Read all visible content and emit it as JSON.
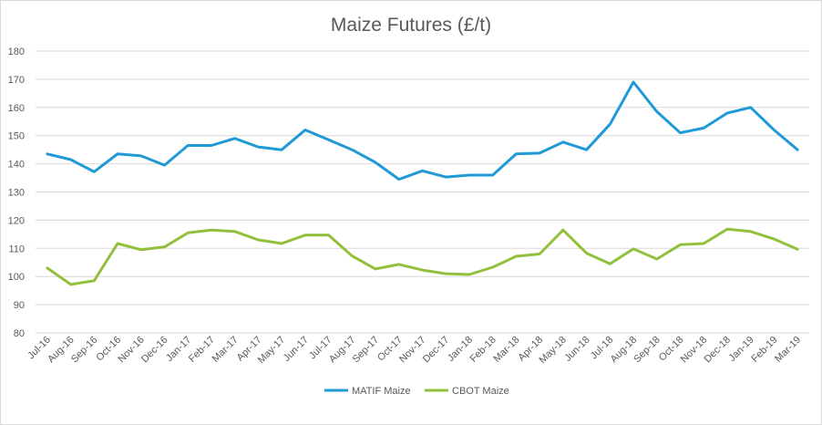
{
  "chart_data": {
    "type": "line",
    "title": "Maize Futures (£/t)",
    "xlabel": "",
    "ylabel": "",
    "ylim": [
      80,
      180
    ],
    "ytick_step": 10,
    "grid": "horizontal",
    "legend": "bottom-center",
    "categories": [
      "Jul-16",
      "Aug-16",
      "Sep-16",
      "Oct-16",
      "Nov-16",
      "Dec-16",
      "Jan-17",
      "Feb-17",
      "Mar-17",
      "Apr-17",
      "May-17",
      "Jun-17",
      "Jul-17",
      "Aug-17",
      "Sep-17",
      "Oct-17",
      "Nov-17",
      "Dec-17",
      "Jan-18",
      "Feb-18",
      "Mar-18",
      "Apr-18",
      "May-18",
      "Jun-18",
      "Jul-18",
      "Aug-18",
      "Sep-18",
      "Oct-18",
      "Nov-18",
      "Dec-18",
      "Jan-19",
      "Feb-19",
      "Mar-19"
    ],
    "series": [
      {
        "name": "MATIF Maize",
        "color": "#1f9ad6",
        "values": [
          143.5,
          141.5,
          137.2,
          143.5,
          142.8,
          139.5,
          146.5,
          146.5,
          149,
          146,
          145,
          152,
          148.5,
          145,
          140.5,
          134.5,
          137.5,
          135.3,
          136,
          136,
          143.5,
          143.8,
          147.7,
          145,
          154,
          169,
          158.5,
          151,
          152.7,
          158,
          160,
          152,
          145
        ]
      },
      {
        "name": "CBOT Maize",
        "color": "#92c03c",
        "values": [
          103,
          97.2,
          98.5,
          111.7,
          109.5,
          110.5,
          115.5,
          116.5,
          116,
          113,
          111.7,
          114.7,
          114.7,
          107.3,
          102.7,
          104.3,
          102.3,
          101,
          100.7,
          103.3,
          107.2,
          108,
          116.5,
          108.3,
          104.5,
          109.8,
          106.2,
          111.3,
          111.7,
          116.8,
          116,
          113.3,
          109.7
        ]
      }
    ]
  }
}
